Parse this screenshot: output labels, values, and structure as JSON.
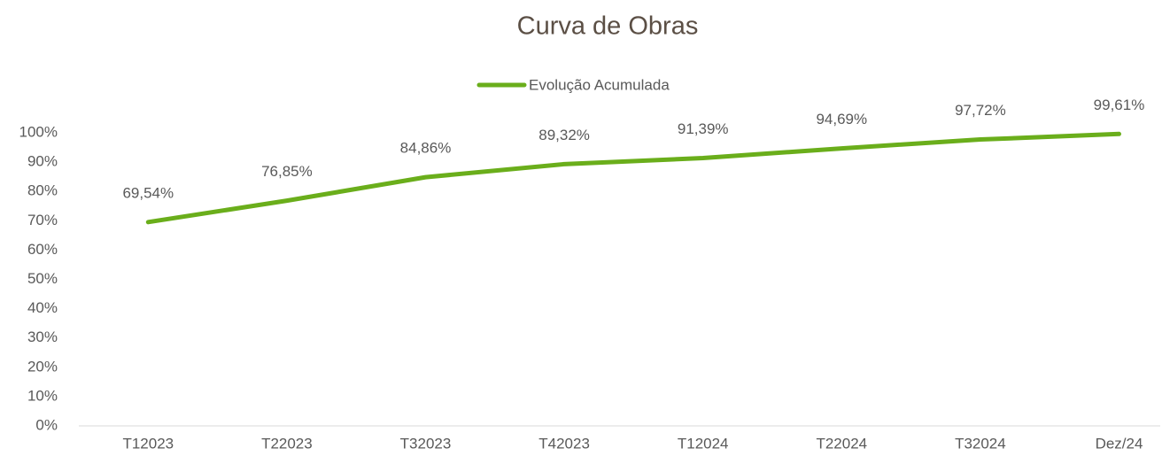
{
  "chart_data": {
    "type": "line",
    "title": "Curva de Obras",
    "categories": [
      "T12023",
      "T22023",
      "T32023",
      "T42023",
      "T12024",
      "T22024",
      "T32024",
      "Dez/24"
    ],
    "series": [
      {
        "name": "Evolução Acumulada",
        "color": "#6aae1b",
        "values": [
          69.54,
          76.85,
          84.86,
          89.32,
          91.39,
          94.69,
          97.72,
          99.61
        ],
        "value_labels": [
          "69,54%",
          "76,85%",
          "84,86%",
          "89,32%",
          "91,39%",
          "94,69%",
          "97,72%",
          "99,61%"
        ]
      }
    ],
    "ylim": [
      0,
      100
    ],
    "yticks": [
      {
        "value": 0,
        "label": "0%"
      },
      {
        "value": 10,
        "label": "10%"
      },
      {
        "value": 20,
        "label": "20%"
      },
      {
        "value": 30,
        "label": "30%"
      },
      {
        "value": 40,
        "label": "40%"
      },
      {
        "value": 50,
        "label": "50%"
      },
      {
        "value": 60,
        "label": "60%"
      },
      {
        "value": 70,
        "label": "70%"
      },
      {
        "value": 80,
        "label": "80%"
      },
      {
        "value": 90,
        "label": "90%"
      },
      {
        "value": 100,
        "label": "100%"
      }
    ],
    "legend": "top",
    "grid": false
  }
}
